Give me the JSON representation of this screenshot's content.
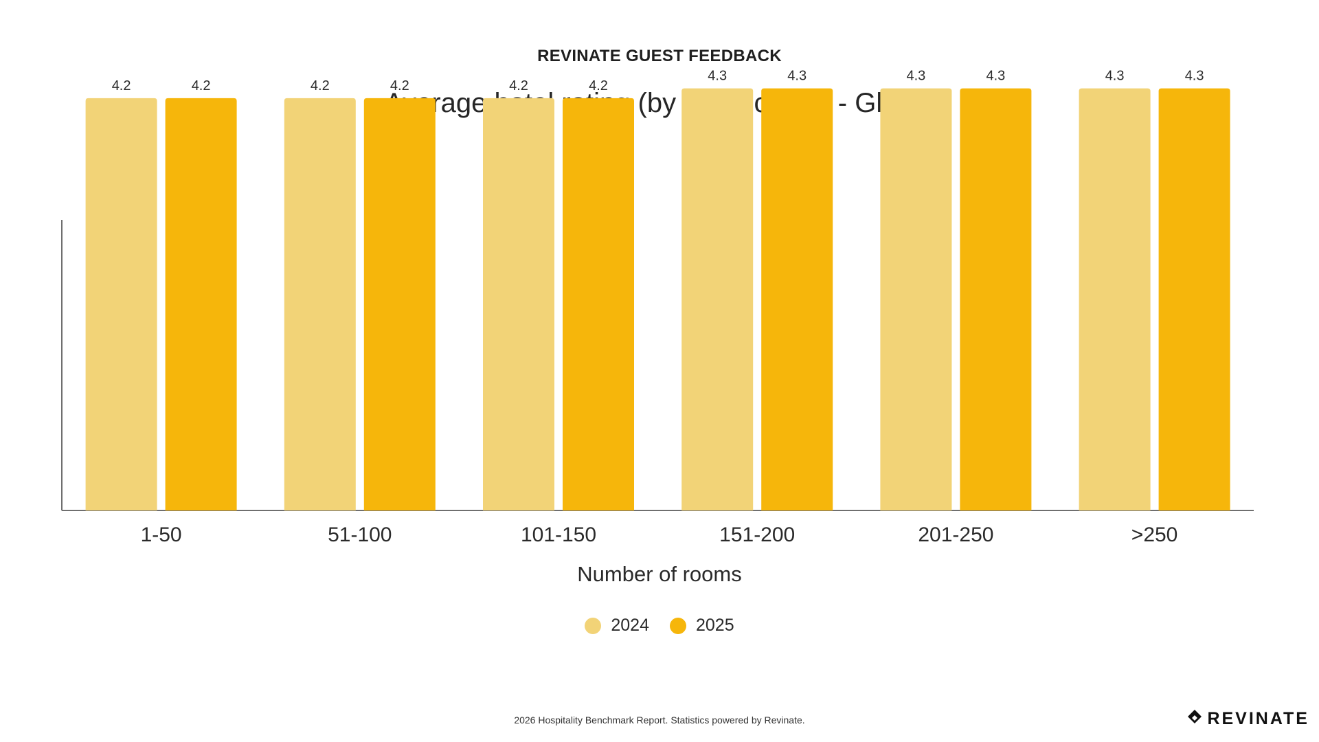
{
  "header": {
    "eyebrow": "REVINATE GUEST FEEDBACK",
    "title": "Average hotel rating (by room count) - Global"
  },
  "chart_data": {
    "type": "bar",
    "title": "Average hotel rating (by room count) - Global",
    "xlabel": "Number of rooms",
    "ylabel": "",
    "categories": [
      "1-50",
      "51-100",
      "101-150",
      "151-200",
      "201-250",
      ">250"
    ],
    "series": [
      {
        "name": "2024",
        "values": [
          4.2,
          4.2,
          4.2,
          4.3,
          4.3,
          4.3
        ],
        "color": "#F2D377"
      },
      {
        "name": "2025",
        "values": [
          4.2,
          4.2,
          4.2,
          4.3,
          4.3,
          4.3
        ],
        "color": "#F6B60B"
      }
    ],
    "ylim": [
      0,
      5.2
    ],
    "grid": false,
    "legend": "bottom-center"
  },
  "legend": [
    {
      "label": "2024",
      "color": "#F2D377"
    },
    {
      "label": "2025",
      "color": "#F6B60B"
    }
  ],
  "footer": {
    "note": "2026 Hospitality Benchmark Report. Statistics powered by Revinate.",
    "logo_text": "REVINATE"
  }
}
